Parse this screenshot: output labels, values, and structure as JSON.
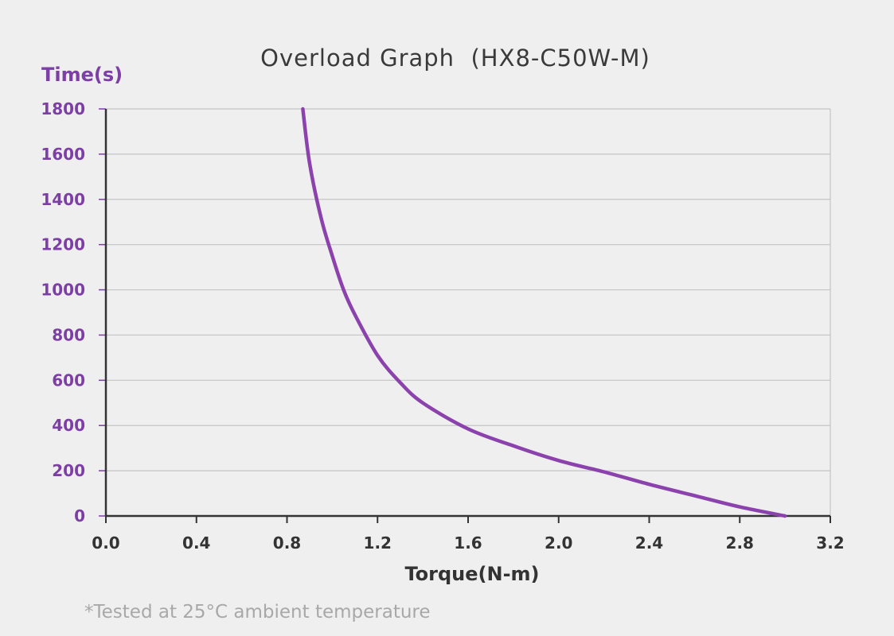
{
  "chart_data": {
    "type": "line",
    "title": "Overload Graph  (HX8-C50W-M)",
    "xlabel": "Torque(N-m)",
    "ylabel": "Time(s)",
    "xlim": [
      0,
      3.2
    ],
    "ylim": [
      0,
      1800
    ],
    "x_ticks": [
      "0.0",
      "0.4",
      "0.8",
      "1.2",
      "1.6",
      "2.0",
      "2.4",
      "2.8",
      "3.2"
    ],
    "y_ticks": [
      "0",
      "200",
      "400",
      "600",
      "800",
      "1000",
      "1200",
      "1400",
      "1600",
      "1800"
    ],
    "grid": true,
    "legend": "none",
    "series": [
      {
        "x": [
          0.87,
          0.9,
          0.95,
          1.0,
          1.05,
          1.1,
          1.2,
          1.3,
          1.4,
          1.6,
          1.8,
          2.0,
          2.2,
          2.4,
          2.6,
          2.8,
          3.0
        ],
        "y": [
          1800,
          1560,
          1320,
          1150,
          1000,
          890,
          710,
          590,
          500,
          385,
          310,
          245,
          195,
          140,
          90,
          40,
          0
        ]
      }
    ],
    "colors": {
      "series": "#8b42ad",
      "y_axis_text": "#7d3fa6",
      "axis": "#333333",
      "grid": "#c4c4c4"
    }
  },
  "footnote": "*Tested at 25°C ambient temperature"
}
